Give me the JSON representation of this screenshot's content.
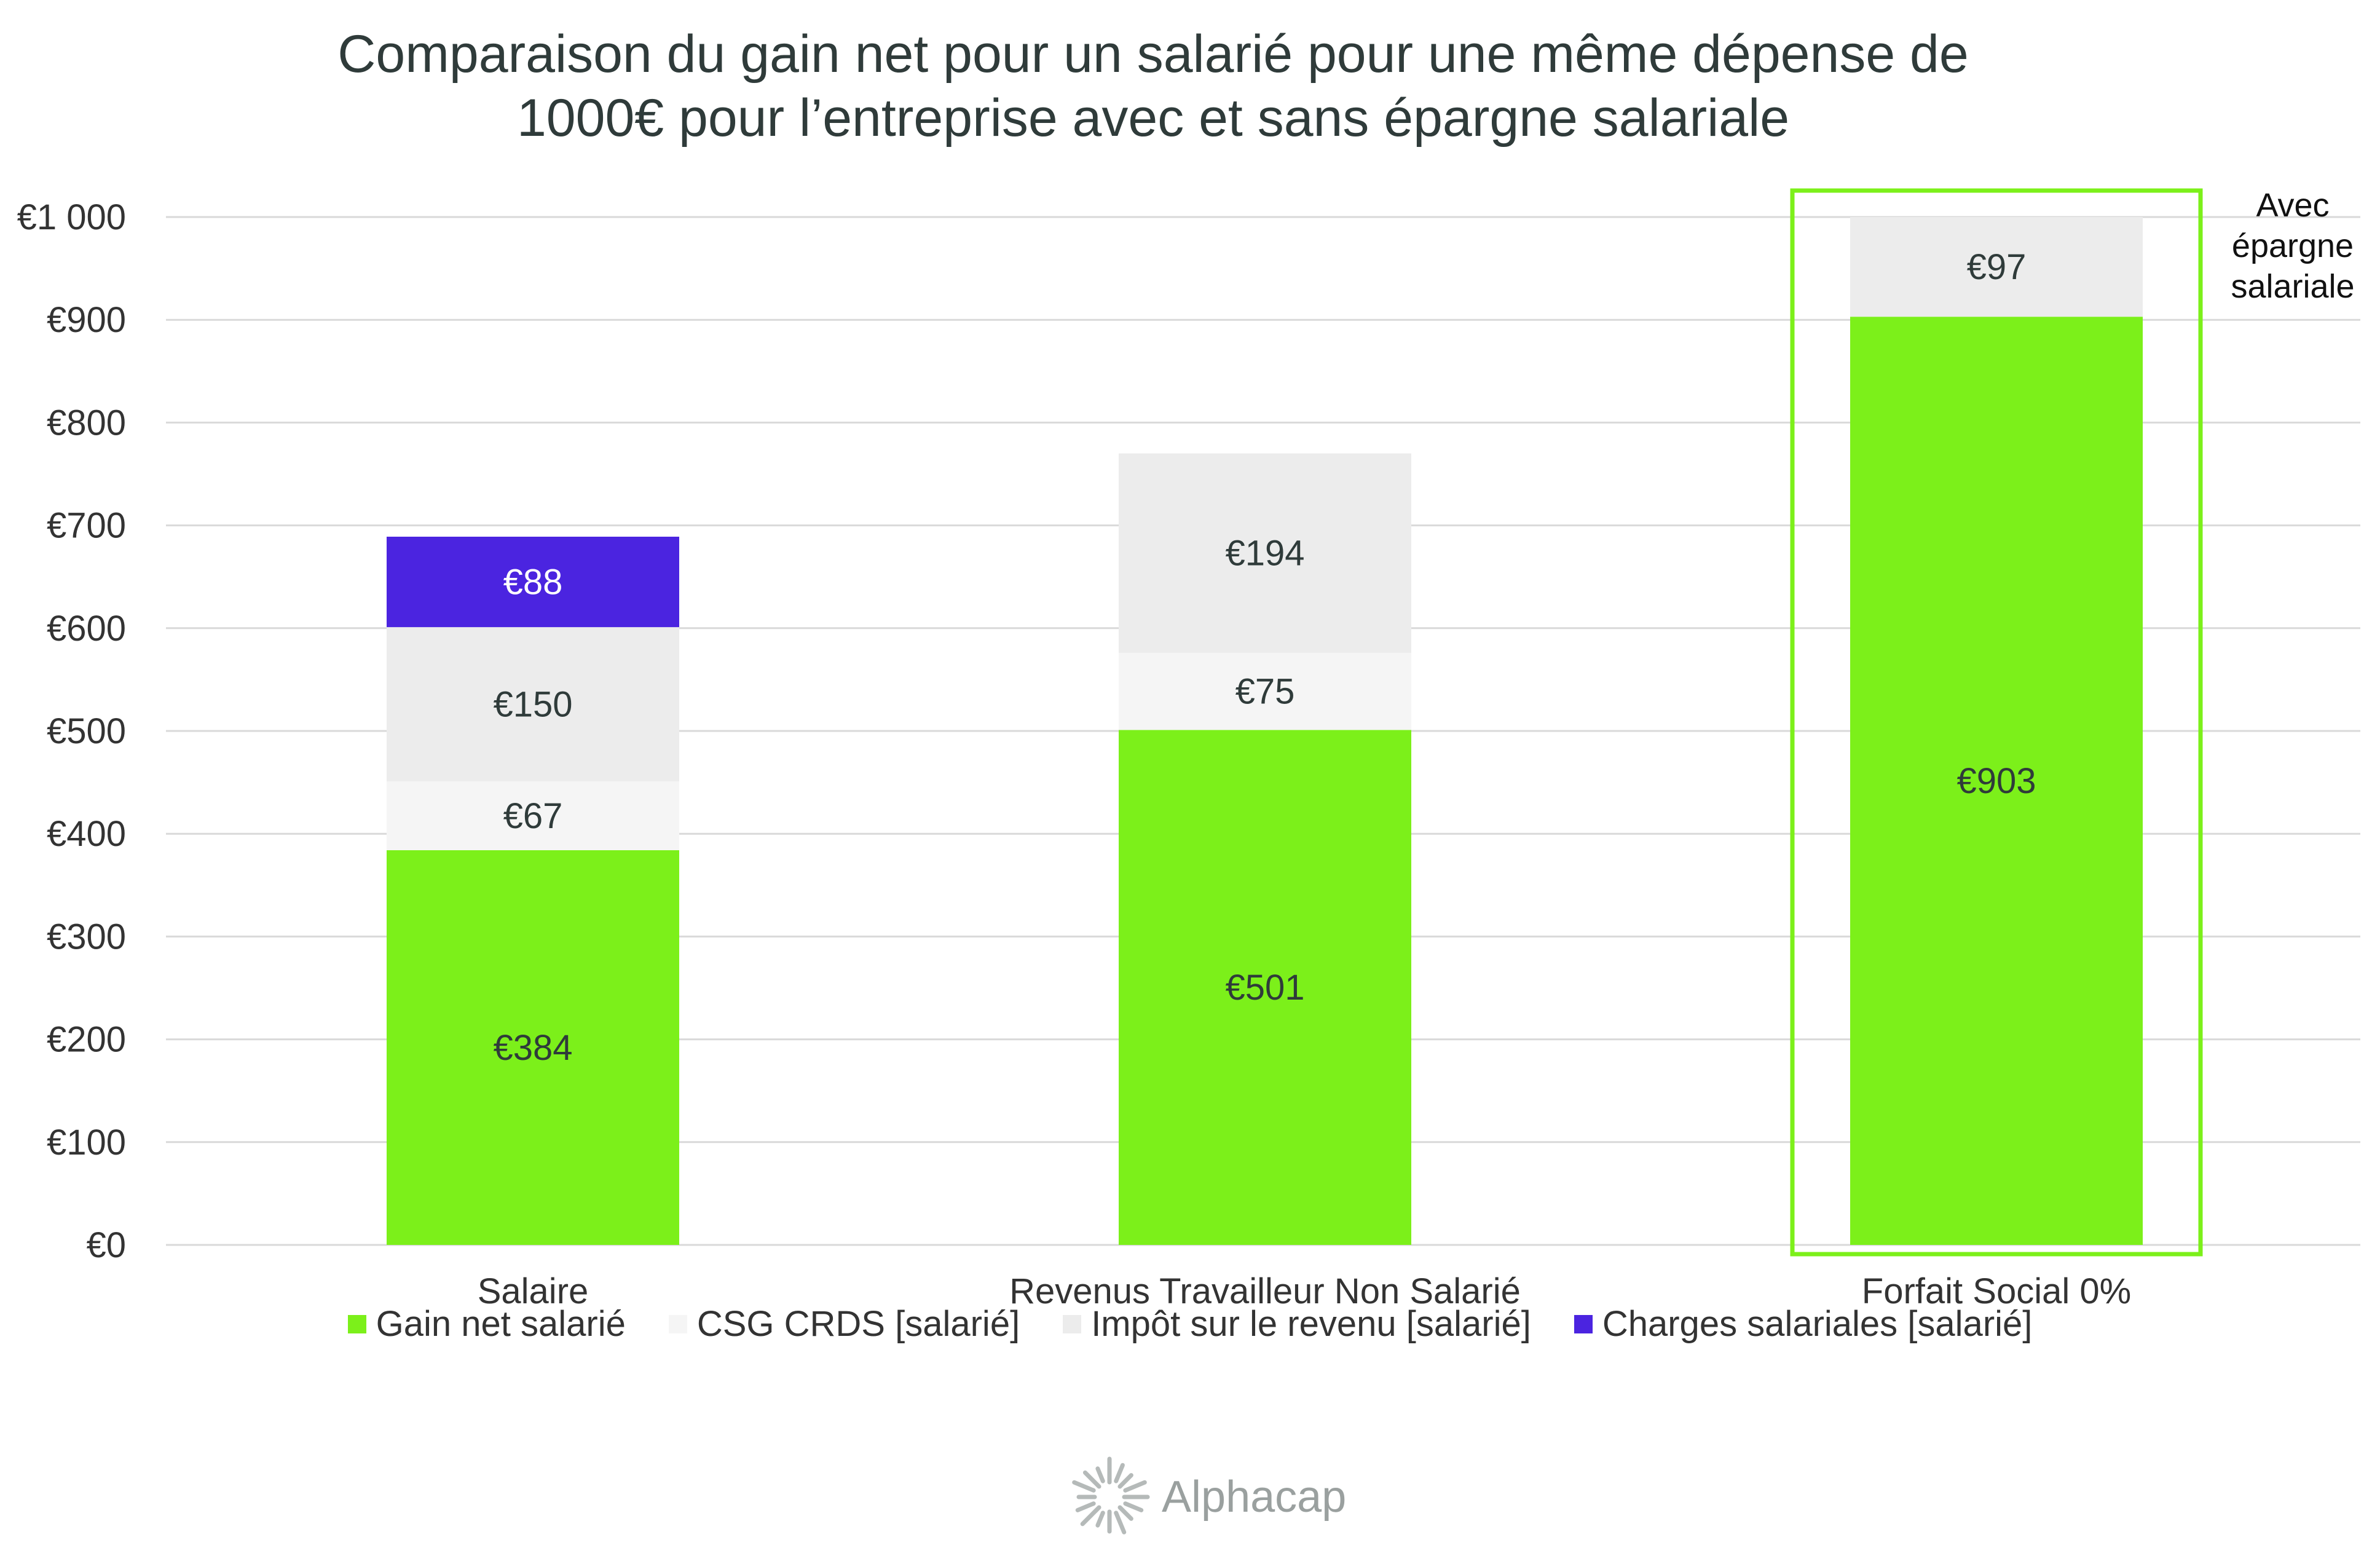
{
  "chart_data": {
    "type": "bar",
    "stacked": true,
    "title_lines": [
      "Comparaison du gain net pour un salarié pour une même dépense de",
      "1000€ pour l’entreprise avec et sans épargne salariale"
    ],
    "categories": [
      "Salaire",
      "Revenus Travailleur Non Salarié",
      "Forfait Social 0%"
    ],
    "series": [
      {
        "name": "Gain net salarié",
        "color": "#7cf01a",
        "label_color": "#2f3b3a",
        "values": [
          384,
          501,
          903
        ],
        "labels": [
          "€384",
          "€501",
          "€903"
        ]
      },
      {
        "name": "CSG CRDS [salarié]",
        "color": "#f5f5f5",
        "label_color": "#2f3b3a",
        "values": [
          67,
          75,
          0
        ],
        "labels": [
          "€67",
          "€75",
          ""
        ]
      },
      {
        "name": "Impôt sur le revenu [salarié]",
        "color": "#ececec",
        "label_color": "#2f3b3a",
        "values": [
          150,
          194,
          97
        ],
        "labels": [
          "€150",
          "€194",
          "€97"
        ]
      },
      {
        "name": "Charges salariales [salarié]",
        "color": "#4b24e0",
        "label_color": "#ffffff",
        "values": [
          88,
          0,
          0
        ],
        "labels": [
          "€88",
          "",
          ""
        ]
      }
    ],
    "yticks": [
      "€0",
      "€100",
      "€200",
      "€300",
      "€400",
      "€500",
      "€600",
      "€700",
      "€800",
      "€900",
      "€1 000"
    ],
    "ylim": [
      0,
      1000
    ],
    "grid": true,
    "legend_position": "bottom",
    "highlight": {
      "category": "Forfait Social 0%",
      "color": "#7cf01a",
      "note": [
        "Avec",
        "épargne",
        "salariale"
      ]
    }
  },
  "brand": {
    "name": "Alphacap",
    "icon": "sunburst-logo-icon"
  }
}
